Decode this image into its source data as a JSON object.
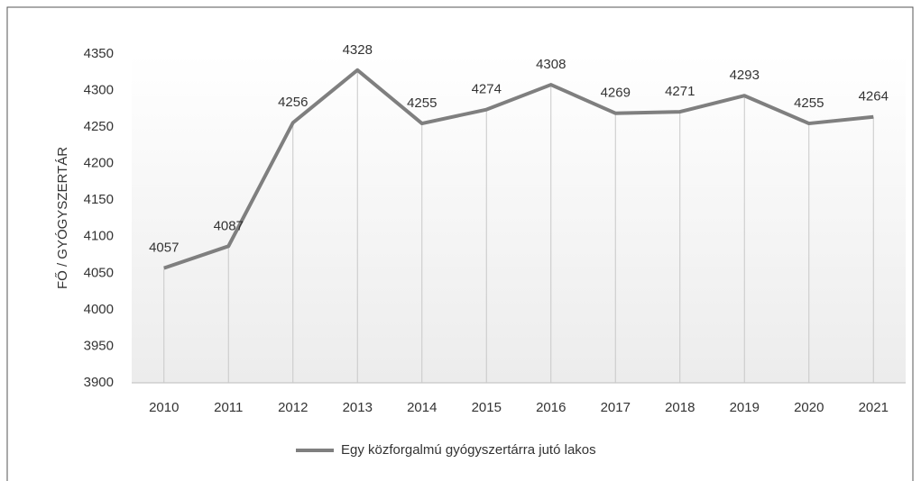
{
  "chart_data": {
    "type": "line",
    "y_label": "FŐ / GYÓGYSZERTÁR",
    "categories": [
      "2010",
      "2011",
      "2012",
      "2013",
      "2014",
      "2015",
      "2016",
      "2017",
      "2018",
      "2019",
      "2020",
      "2021"
    ],
    "series": [
      {
        "name": "Egy közforgalmú gyógyszertárra jutó lakos",
        "color": "#7f7f7f",
        "values": [
          4057,
          4087,
          4256,
          4328,
          4255,
          4274,
          4308,
          4269,
          4271,
          4293,
          4255,
          4264
        ]
      }
    ],
    "ylim": [
      3900,
      4350
    ],
    "yticks": [
      3900,
      3950,
      4000,
      4050,
      4100,
      4150,
      4200,
      4250,
      4300,
      4350
    ],
    "legend": "bottom"
  }
}
